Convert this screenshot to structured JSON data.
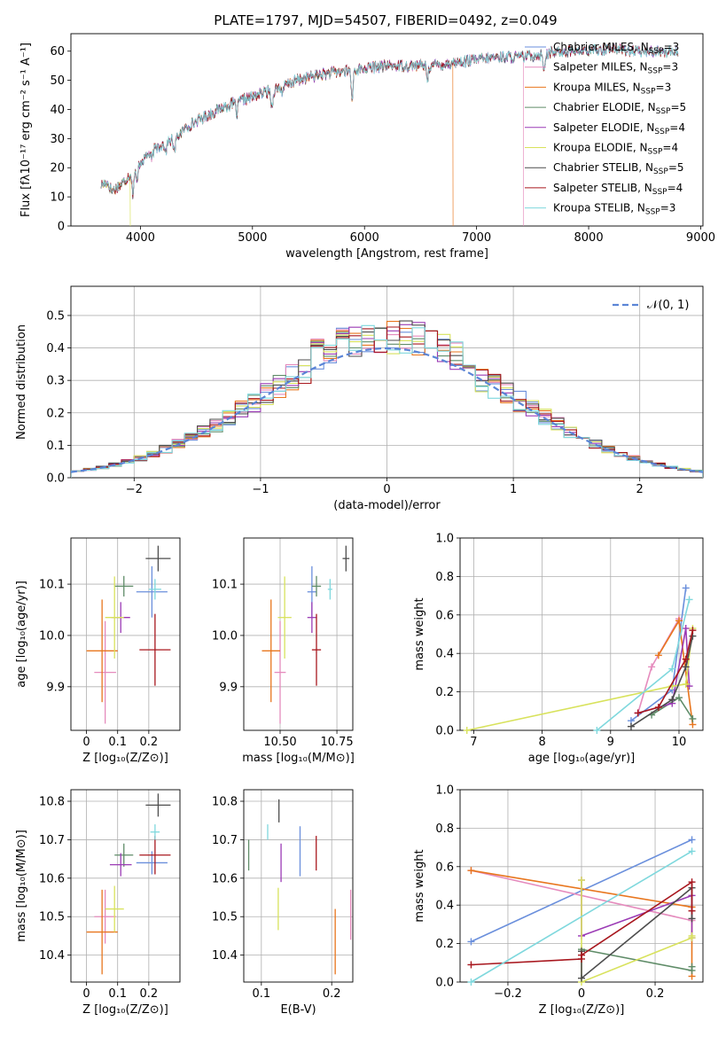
{
  "figure_title": "PLATE=1797, MJD=54507, FIBERID=0492, z=0.049",
  "colors": [
    "#6a8fdc",
    "#e58bbd",
    "#e8761e",
    "#5f8c68",
    "#9b3bb5",
    "#d8e25c",
    "#4d4d4d",
    "#a8171e",
    "#7fd8dd"
  ],
  "chart_data": [
    {
      "id": "spectrum",
      "type": "line",
      "title": "PLATE=1797, MJD=54507, FIBERID=0492, z=0.049",
      "xlabel": "wavelength [Angstrom, rest frame]",
      "ylabel": "Flux [fλ10⁻¹⁷ erg cm⁻² s⁻¹ A⁻¹]",
      "xlim": [
        3380,
        9020
      ],
      "ylim": [
        0,
        66
      ],
      "xticks": [
        4000,
        5000,
        6000,
        7000,
        8000,
        9000
      ],
      "yticks": [
        0,
        10,
        20,
        30,
        40,
        50,
        60
      ],
      "grid": false,
      "legend_position": "upper-right",
      "continuum": [
        [
          3650,
          14
        ],
        [
          3700,
          15
        ],
        [
          3750,
          12
        ],
        [
          3850,
          15
        ],
        [
          3950,
          20
        ],
        [
          4050,
          24
        ],
        [
          4150,
          27
        ],
        [
          4300,
          30
        ],
        [
          4450,
          35
        ],
        [
          4600,
          38
        ],
        [
          4750,
          41
        ],
        [
          4900,
          43
        ],
        [
          5050,
          45
        ],
        [
          5200,
          47
        ],
        [
          5400,
          50
        ],
        [
          5600,
          52
        ],
        [
          5800,
          53
        ],
        [
          6000,
          54
        ],
        [
          6200,
          55
        ],
        [
          6400,
          55
        ],
        [
          6600,
          55
        ],
        [
          6800,
          56
        ],
        [
          7000,
          57
        ],
        [
          7200,
          58
        ],
        [
          7400,
          58
        ],
        [
          7600,
          59
        ],
        [
          7800,
          60
        ],
        [
          8000,
          60
        ],
        [
          8200,
          61
        ],
        [
          8400,
          60
        ],
        [
          8600,
          60
        ],
        [
          8800,
          60
        ]
      ],
      "absorption_features": [
        [
          3934,
          8
        ],
        [
          3969,
          6
        ],
        [
          4101,
          3
        ],
        [
          4227,
          3
        ],
        [
          4304,
          5
        ],
        [
          4861,
          4
        ],
        [
          5175,
          6
        ],
        [
          5270,
          3
        ],
        [
          5890,
          10
        ],
        [
          6563,
          4
        ],
        [
          7600,
          5
        ]
      ],
      "truncations": [
        {
          "series": 5,
          "x_end": 3910
        },
        {
          "series": 2,
          "x_end": 6790
        },
        {
          "series": 5,
          "x_end": 6790
        },
        {
          "series": 1,
          "x_end": 7420
        },
        {
          "series": 2,
          "x_end": 7420
        }
      ],
      "series": [
        {
          "name": "Chabrier MILES, N",
          "sub": "SSP",
          "suffix": "=3"
        },
        {
          "name": "Salpeter MILES, N",
          "sub": "SSP",
          "suffix": "=3"
        },
        {
          "name": "Kroupa MILES, N",
          "sub": "SSP",
          "suffix": "=3"
        },
        {
          "name": "Chabrier ELODIE, N",
          "sub": "SSP",
          "suffix": "=5"
        },
        {
          "name": "Salpeter ELODIE, N",
          "sub": "SSP",
          "suffix": "=4"
        },
        {
          "name": "Kroupa ELODIE, N",
          "sub": "SSP",
          "suffix": "=4"
        },
        {
          "name": "Chabrier STELIB, N",
          "sub": "SSP",
          "suffix": "=5"
        },
        {
          "name": "Salpeter STELIB, N",
          "sub": "SSP",
          "suffix": "=4"
        },
        {
          "name": "Kroupa STELIB, N",
          "sub": "SSP",
          "suffix": "=3"
        }
      ]
    },
    {
      "id": "residuals",
      "type": "histogram",
      "xlabel": "(data-model)/error",
      "ylabel": "Normed distribution",
      "xlim": [
        -2.5,
        2.5
      ],
      "ylim": [
        0,
        0.59
      ],
      "xticks": [
        -2,
        -1,
        0,
        1,
        2
      ],
      "yticks": [
        0.0,
        0.1,
        0.2,
        0.3,
        0.4,
        0.5
      ],
      "grid": true,
      "legend_position": "upper-right",
      "legend_label": "𝒩(0, 1)",
      "reference_curve": "standard normal density",
      "bin_width": 0.1,
      "bin_range": [
        -2.5,
        2.5
      ]
    },
    {
      "id": "age_vs_Z",
      "type": "errorbar",
      "xlabel": "Z [log₁₀(Z/Z⊙)]",
      "ylabel": "age  [log₁₀(age/yr)]",
      "xlim": [
        -0.05,
        0.3
      ],
      "ylim": [
        9.815,
        10.19
      ],
      "xticks": [
        0.0,
        0.1,
        0.2
      ],
      "yticks": [
        9.9,
        10.0,
        10.1
      ],
      "grid": true,
      "points": [
        {
          "x": 0.21,
          "y": 10.085,
          "xerr": 0.05,
          "yerr": 0.05,
          "series": 0
        },
        {
          "x": 0.06,
          "y": 9.928,
          "xerr": 0.035,
          "yerr": 0.1,
          "series": 1
        },
        {
          "x": 0.05,
          "y": 9.97,
          "xerr": 0.05,
          "yerr": 0.1,
          "series": 2
        },
        {
          "x": 0.12,
          "y": 10.096,
          "xerr": 0.03,
          "yerr": 0.02,
          "series": 3
        },
        {
          "x": 0.11,
          "y": 10.035,
          "xerr": 0.03,
          "yerr": 0.03,
          "series": 4
        },
        {
          "x": 0.09,
          "y": 10.035,
          "xerr": 0.03,
          "yerr": 0.08,
          "series": 5
        },
        {
          "x": 0.23,
          "y": 10.15,
          "xerr": 0.04,
          "yerr": 0.025,
          "series": 6
        },
        {
          "x": 0.22,
          "y": 9.972,
          "xerr": 0.05,
          "yerr": 0.07,
          "series": 7
        },
        {
          "x": 0.22,
          "y": 10.09,
          "xerr": 0.02,
          "yerr": 0.02,
          "series": 8
        }
      ]
    },
    {
      "id": "age_vs_mass",
      "type": "errorbar",
      "xlabel": "mass [log₁₀(M/M⊙)]",
      "ylabel": "",
      "xlim": [
        10.34,
        10.82
      ],
      "ylim": [
        9.815,
        10.19
      ],
      "xticks": [
        10.5,
        10.75
      ],
      "yticks": [
        9.9,
        10.0,
        10.1
      ],
      "grid": true,
      "points": [
        {
          "x": 10.64,
          "y": 10.085,
          "xerr": 0.02,
          "yerr": 0.05,
          "series": 0
        },
        {
          "x": 10.5,
          "y": 9.928,
          "xerr": 0.025,
          "yerr": 0.1,
          "series": 1
        },
        {
          "x": 10.46,
          "y": 9.97,
          "xerr": 0.04,
          "yerr": 0.1,
          "series": 2
        },
        {
          "x": 10.66,
          "y": 10.096,
          "xerr": 0.02,
          "yerr": 0.02,
          "series": 3
        },
        {
          "x": 10.64,
          "y": 10.035,
          "xerr": 0.02,
          "yerr": 0.03,
          "series": 4
        },
        {
          "x": 10.52,
          "y": 10.035,
          "xerr": 0.03,
          "yerr": 0.08,
          "series": 5
        },
        {
          "x": 10.79,
          "y": 10.15,
          "xerr": 0.015,
          "yerr": 0.025,
          "series": 6
        },
        {
          "x": 10.66,
          "y": 9.972,
          "xerr": 0.02,
          "yerr": 0.07,
          "series": 7
        },
        {
          "x": 10.72,
          "y": 10.09,
          "xerr": 0.01,
          "yerr": 0.02,
          "series": 8
        }
      ]
    },
    {
      "id": "weight_vs_age",
      "type": "line",
      "xlabel": "age  [log₁₀(age/yr)]",
      "ylabel": "mass weight",
      "xlim": [
        6.8,
        10.35
      ],
      "ylim": [
        0,
        1
      ],
      "xticks": [
        7,
        8,
        9,
        10
      ],
      "yticks": [
        0.0,
        0.2,
        0.4,
        0.6,
        0.8,
        1.0
      ],
      "grid": true,
      "series_points": [
        {
          "series": 0,
          "x": [
            9.3,
            9.9,
            10.1
          ],
          "y": [
            0.05,
            0.21,
            0.74
          ]
        },
        {
          "series": 1,
          "x": [
            9.4,
            9.6,
            10.0
          ],
          "y": [
            0.09,
            0.33,
            0.58
          ]
        },
        {
          "series": 2,
          "x": [
            9.7,
            10.0,
            10.2
          ],
          "y": [
            0.39,
            0.57,
            0.03
          ]
        },
        {
          "series": 3,
          "x": [
            9.6,
            10.0,
            10.2
          ],
          "y": [
            0.08,
            0.17,
            0.06
          ]
        },
        {
          "series": 4,
          "x": [
            9.4,
            9.9,
            10.1,
            10.15
          ],
          "y": [
            0.09,
            0.14,
            0.53,
            0.23
          ]
        },
        {
          "series": 5,
          "x": [
            6.9,
            9.9,
            10.1,
            10.2
          ],
          "y": [
            0.0,
            0.23,
            0.24,
            0.53
          ]
        },
        {
          "series": 6,
          "x": [
            9.3,
            9.9,
            10.1,
            10.2
          ],
          "y": [
            0.02,
            0.16,
            0.33,
            0.49
          ]
        },
        {
          "series": 7,
          "x": [
            9.4,
            9.7,
            10.1,
            10.2
          ],
          "y": [
            0.09,
            0.12,
            0.37,
            0.52
          ]
        },
        {
          "series": 8,
          "x": [
            8.8,
            9.9,
            10.15
          ],
          "y": [
            0.0,
            0.32,
            0.68
          ]
        }
      ]
    },
    {
      "id": "mass_vs_Z",
      "type": "errorbar",
      "xlabel": "Z [log₁₀(Z/Z⊙)]",
      "ylabel": "mass [log₁₀(M/M⊙)]",
      "xlim": [
        -0.05,
        0.3
      ],
      "ylim": [
        10.33,
        10.83
      ],
      "xticks": [
        0.0,
        0.1,
        0.2
      ],
      "yticks": [
        10.4,
        10.5,
        10.6,
        10.7,
        10.8
      ],
      "grid": true,
      "points": [
        {
          "x": 0.21,
          "y": 10.64,
          "xerr": 0.05,
          "yerr": 0.03,
          "series": 0
        },
        {
          "x": 0.06,
          "y": 10.5,
          "xerr": 0.035,
          "yerr": 0.07,
          "series": 1
        },
        {
          "x": 0.05,
          "y": 10.46,
          "xerr": 0.05,
          "yerr": 0.11,
          "series": 2
        },
        {
          "x": 0.12,
          "y": 10.66,
          "xerr": 0.03,
          "yerr": 0.03,
          "series": 3
        },
        {
          "x": 0.11,
          "y": 10.635,
          "xerr": 0.035,
          "yerr": 0.03,
          "series": 4
        },
        {
          "x": 0.09,
          "y": 10.52,
          "xerr": 0.03,
          "yerr": 0.06,
          "series": 5
        },
        {
          "x": 0.23,
          "y": 10.79,
          "xerr": 0.04,
          "yerr": 0.03,
          "series": 6
        },
        {
          "x": 0.22,
          "y": 10.66,
          "xerr": 0.05,
          "yerr": 0.05,
          "series": 7
        },
        {
          "x": 0.22,
          "y": 10.72,
          "xerr": 0.015,
          "yerr": 0.02,
          "series": 8
        }
      ]
    },
    {
      "id": "mass_vs_ebv",
      "type": "errorbar",
      "xlabel": "E(B-V)",
      "ylabel": "",
      "xlim": [
        0.075,
        0.23
      ],
      "ylim": [
        10.33,
        10.83
      ],
      "xticks": [
        0.1,
        0.2
      ],
      "yticks": [
        10.4,
        10.5,
        10.6,
        10.7,
        10.8
      ],
      "grid": true,
      "points": [
        {
          "x": 0.155,
          "y": 10.67,
          "xerr": 0.0,
          "yerr": 0.065,
          "series": 0
        },
        {
          "x": 0.227,
          "y": 10.505,
          "xerr": 0.0,
          "yerr": 0.065,
          "series": 1
        },
        {
          "x": 0.205,
          "y": 10.435,
          "xerr": 0.0,
          "yerr": 0.085,
          "series": 2
        },
        {
          "x": 0.082,
          "y": 10.66,
          "xerr": 0.0,
          "yerr": 0.04,
          "series": 3
        },
        {
          "x": 0.128,
          "y": 10.64,
          "xerr": 0.0,
          "yerr": 0.05,
          "series": 4
        },
        {
          "x": 0.124,
          "y": 10.52,
          "xerr": 0.0,
          "yerr": 0.055,
          "series": 5
        },
        {
          "x": 0.125,
          "y": 10.775,
          "xerr": 0.0,
          "yerr": 0.03,
          "series": 6
        },
        {
          "x": 0.178,
          "y": 10.665,
          "xerr": 0.0,
          "yerr": 0.045,
          "series": 7
        },
        {
          "x": 0.109,
          "y": 10.72,
          "xerr": 0.0,
          "yerr": 0.02,
          "series": 8
        }
      ]
    },
    {
      "id": "weight_vs_Z",
      "type": "line",
      "xlabel": "Z [log₁₀(Z/Z⊙)]",
      "ylabel": "mass weight",
      "xlim": [
        -0.33,
        0.33
      ],
      "ylim": [
        0,
        1
      ],
      "xticks": [
        -0.2,
        0.0,
        0.2
      ],
      "yticks": [
        0.0,
        0.2,
        0.4,
        0.6,
        0.8,
        1.0
      ],
      "grid": true,
      "series_points": [
        {
          "series": 0,
          "x": [
            -0.3,
            0.3
          ],
          "y": [
            0.21,
            0.74
          ]
        },
        {
          "series": 1,
          "x": [
            -0.3,
            0.3
          ],
          "y": [
            0.58,
            0.32
          ]
        },
        {
          "series": 2,
          "x": [
            -0.3,
            0.3,
            0.3
          ],
          "y": [
            0.58,
            0.39,
            0.03
          ]
        },
        {
          "series": 3,
          "x": [
            0.0,
            0.3,
            0.3
          ],
          "y": [
            0.17,
            0.06,
            0.08
          ]
        },
        {
          "series": 4,
          "x": [
            0.0,
            0.0,
            0.3,
            0.3
          ],
          "y": [
            0.53,
            0.24,
            0.45,
            0.23
          ]
        },
        {
          "series": 5,
          "x": [
            0.0,
            0.0,
            0.3,
            0.3
          ],
          "y": [
            0.53,
            0.0,
            0.23,
            0.24
          ]
        },
        {
          "series": 6,
          "x": [
            0.0,
            0.0,
            0.3,
            0.3
          ],
          "y": [
            0.16,
            0.02,
            0.49,
            0.33
          ]
        },
        {
          "series": 7,
          "x": [
            -0.3,
            0.0,
            0.0,
            0.3,
            0.3
          ],
          "y": [
            0.09,
            0.12,
            0.14,
            0.52,
            0.37
          ]
        },
        {
          "series": 8,
          "x": [
            -0.3,
            0.3
          ],
          "y": [
            0.0,
            0.68
          ]
        }
      ]
    }
  ]
}
